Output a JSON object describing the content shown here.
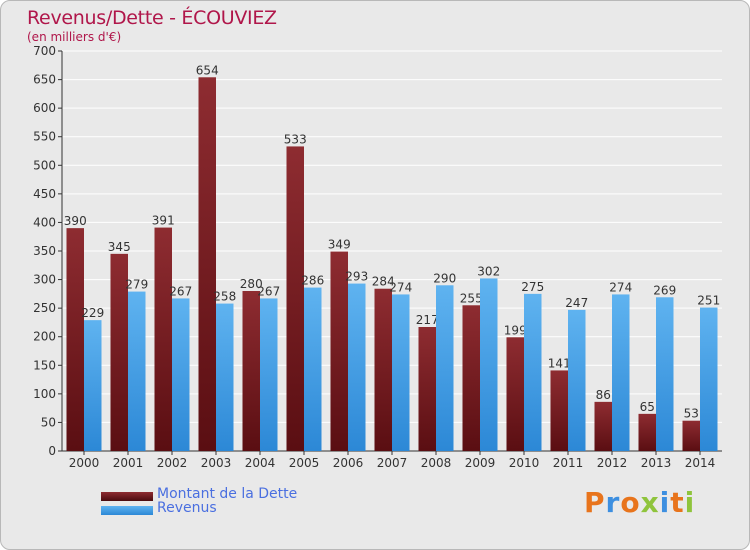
{
  "title": "Revenus/Dette - ÉCOUVIEZ",
  "subtitle": "(en milliers d'€)",
  "logo": "Proxiti",
  "colors": {
    "dette": "#7a1e22",
    "revenus": "#3f9ee6",
    "title": "#b0164a",
    "legend_text": "#4a6fe0"
  },
  "chart_data": {
    "type": "bar",
    "title": "Revenus/Dette - ÉCOUVIEZ",
    "subtitle": "(en milliers d'€)",
    "categories": [
      "2000",
      "2001",
      "2002",
      "2003",
      "2004",
      "2005",
      "2006",
      "2007",
      "2008",
      "2009",
      "2010",
      "2011",
      "2012",
      "2013",
      "2014"
    ],
    "series": [
      {
        "name": "Montant de la Dette",
        "values": [
          390,
          345,
          391,
          654,
          280,
          533,
          349,
          284,
          217,
          255,
          199,
          141,
          86,
          65,
          53
        ]
      },
      {
        "name": "Revenus",
        "values": [
          229,
          279,
          267,
          258,
          267,
          286,
          293,
          274,
          290,
          302,
          275,
          247,
          274,
          269,
          251
        ]
      }
    ],
    "ylim": [
      0,
      700
    ],
    "yticks": [
      0,
      50,
      100,
      150,
      200,
      250,
      300,
      350,
      400,
      450,
      500,
      550,
      600,
      650,
      700
    ],
    "grid": true,
    "legend_position": "bottom-left"
  }
}
